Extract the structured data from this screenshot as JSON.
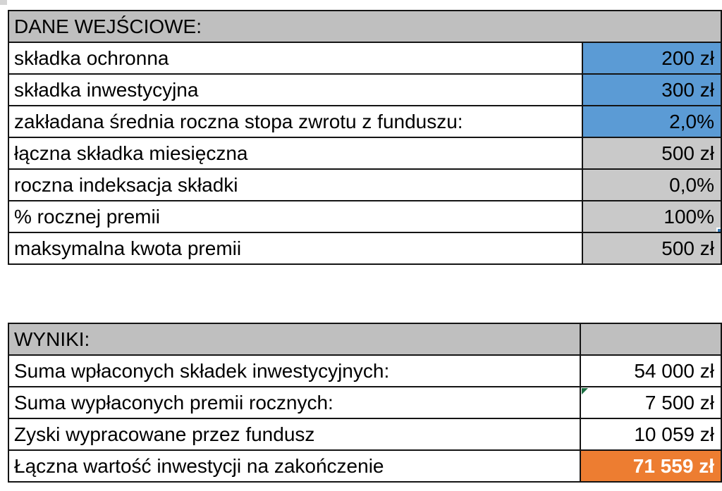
{
  "colors": {
    "header_bg": "#BFBFBF",
    "input_cell_bg": "#5B9BD5",
    "derived_cell_bg": "#C9C9C9",
    "result_cell_bg": "#ED7D31",
    "result_text": "#FFFFFF",
    "selection_border": "#2E75B6",
    "error_indicator": "#1D7044",
    "grid_border": "#141414"
  },
  "input_table": {
    "header": "DANE WEJŚCIOWE:",
    "rows": [
      {
        "label": "składka ochronna",
        "value": "200 zł"
      },
      {
        "label": "składka inwestycyjna",
        "value": "300 zł"
      },
      {
        "label": "zakładana średnia roczna stopa zwrotu z funduszu:",
        "value": "2,0%"
      },
      {
        "label": "łączna składka miesięczna",
        "value": "500 zł"
      },
      {
        "label": "roczna indeksacja składki",
        "value": "0,0%"
      },
      {
        "label": "% rocznej premii",
        "value": "100%"
      },
      {
        "label": "maksymalna kwota premii",
        "value": "500 zł"
      }
    ],
    "selected_row_index": 5
  },
  "results_table": {
    "header": "WYNIKI:",
    "header_value_cell": "",
    "rows": [
      {
        "label": "Suma wpłaconych składek inwestycyjnych:",
        "value": "54 000 zł"
      },
      {
        "label": "Suma wypłaconych premii rocznych:",
        "value": "7 500 zł"
      },
      {
        "label": "Zyski wypracowane przez fundusz",
        "value": "10 059 zł"
      },
      {
        "label": "Łączna wartość inwestycji na zakończenie",
        "value": "71 559 zł"
      }
    ]
  }
}
